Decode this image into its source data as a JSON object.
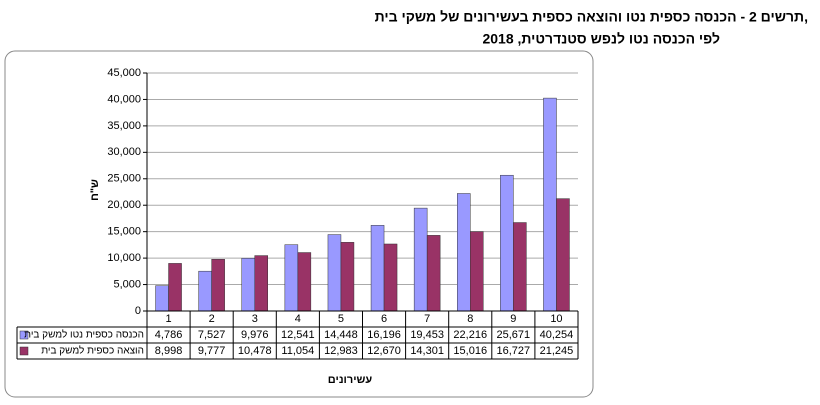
{
  "chart_data": {
    "type": "bar",
    "title": "תרשים 2 - הכנסה כספית נטו והוצאה כספית בעשירונים של משקי בית,",
    "subtitle": "לפי הכנסה נטו לנפש סטנדרטית, 2018",
    "y_label": "ש\"ח",
    "x_label": "עשירונים",
    "categories": [
      "1",
      "2",
      "3",
      "4",
      "5",
      "6",
      "7",
      "8",
      "9",
      "10"
    ],
    "series": [
      {
        "name": "הכנסה כספית נטו למשק בית",
        "color": "#9999ff",
        "values": [
          4786,
          7527,
          9976,
          12541,
          14448,
          16196,
          19453,
          22216,
          25671,
          40254
        ],
        "value_labels": [
          "4,786",
          "7,527",
          "9,976",
          "12,541",
          "14,448",
          "16,196",
          "19,453",
          "22,216",
          "25,671",
          "40,254"
        ]
      },
      {
        "name": "הוצאה כספית למשק בית",
        "color": "#993366",
        "values": [
          8998,
          9777,
          10478,
          11054,
          12983,
          12670,
          14301,
          15016,
          16727,
          21245
        ],
        "value_labels": [
          "8,998",
          "9,777",
          "10,478",
          "11,054",
          "12,983",
          "12,670",
          "14,301",
          "15,016",
          "16,727",
          "21,245"
        ]
      }
    ],
    "ylim": [
      0,
      45000
    ],
    "yticks": [
      0,
      {
        "value": 5000,
        "label": "5,000"
      },
      {
        "value": 10000,
        "label": "10,000"
      },
      {
        "value": 15000,
        "label": "15,000"
      },
      {
        "value": 20000,
        "label": "20,000"
      },
      {
        "value": 25000,
        "label": "25,000"
      },
      {
        "value": 30000,
        "label": "30,000"
      },
      {
        "value": 35000,
        "label": "35,000"
      },
      {
        "value": 40000,
        "label": "40,000"
      },
      {
        "value": 45000,
        "label": "45,000"
      }
    ],
    "grid": true
  }
}
